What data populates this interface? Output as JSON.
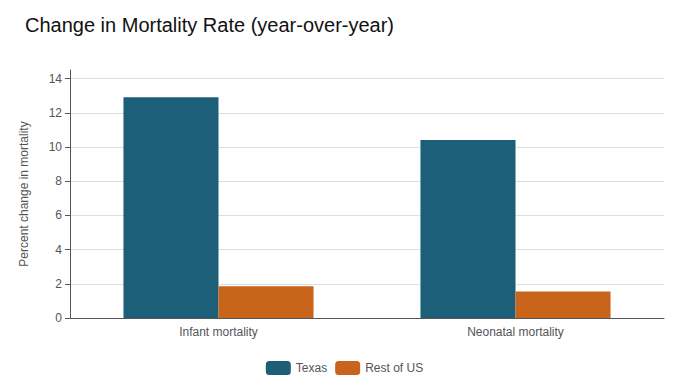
{
  "chart_data": {
    "type": "bar",
    "title": "Change in Mortality Rate (year-over-year)",
    "categories": [
      "Infant mortality",
      "Neonatal mortality"
    ],
    "series": [
      {
        "name": "Texas",
        "color": "#1d5f78",
        "values": [
          12.9,
          10.4
        ]
      },
      {
        "name": "Rest of US",
        "color": "#c8651a",
        "values": [
          1.85,
          1.55
        ]
      }
    ],
    "ylabel": "Percent change in mortality",
    "ylim": [
      0,
      14.5
    ],
    "yticks": [
      0,
      2,
      4,
      6,
      8,
      10,
      12,
      14
    ],
    "grid": true,
    "legend": "bottom"
  }
}
